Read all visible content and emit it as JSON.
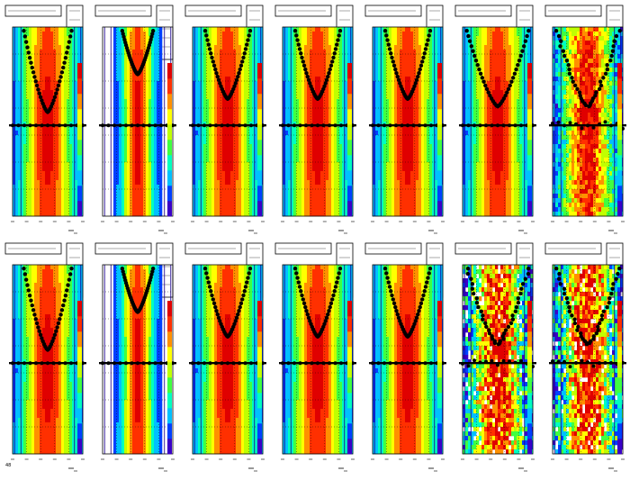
{
  "figure": {
    "footer_text": "",
    "footer_number": "48"
  },
  "chart_data": [
    {
      "type": "heatmap",
      "id": "panel-r1c1",
      "profile": "wide",
      "band": "clean",
      "curve": "v-deep"
    },
    {
      "type": "heatmap",
      "id": "panel-r1c2",
      "profile": "narrow",
      "band": "clean",
      "curve": "v-shallow"
    },
    {
      "type": "heatmap",
      "id": "panel-r1c3",
      "profile": "wide",
      "band": "clean",
      "curve": "v-mid"
    },
    {
      "type": "heatmap",
      "id": "panel-r1c4",
      "profile": "wide",
      "band": "clean",
      "curve": "v-mid"
    },
    {
      "type": "heatmap",
      "id": "panel-r1c5",
      "profile": "wide",
      "band": "clean",
      "curve": "v-mid"
    },
    {
      "type": "heatmap",
      "id": "panel-r1c6",
      "profile": "wide",
      "band": "clean",
      "curve": "v-wide"
    },
    {
      "type": "heatmap",
      "id": "panel-r1c7",
      "profile": "wide",
      "band": "noisy",
      "curve": "v-wide"
    },
    {
      "type": "heatmap",
      "id": "panel-r2c1",
      "profile": "wide",
      "band": "clean",
      "curve": "v-deep"
    },
    {
      "type": "heatmap",
      "id": "panel-r2c2",
      "profile": "narrow",
      "band": "clean",
      "curve": "v-shallow"
    },
    {
      "type": "heatmap",
      "id": "panel-r2c3",
      "profile": "wide",
      "band": "clean",
      "curve": "v-mid"
    },
    {
      "type": "heatmap",
      "id": "panel-r2c4",
      "profile": "wide",
      "band": "clean",
      "curve": "v-mid"
    },
    {
      "type": "heatmap",
      "id": "panel-r2c5",
      "profile": "wide",
      "band": "clean",
      "curve": "v-mid"
    },
    {
      "type": "heatmap",
      "id": "panel-r2c6",
      "profile": "sparse",
      "band": "noisy",
      "curve": "v-wide"
    },
    {
      "type": "heatmap",
      "id": "panel-r2c7",
      "profile": "sparse",
      "band": "noisy",
      "curve": "v-wide"
    }
  ],
  "colors": {
    "palette": [
      "#3a00c8",
      "#0040ff",
      "#00c0ff",
      "#00ffc0",
      "#40ff40",
      "#c0ff00",
      "#ffff00",
      "#ff9000",
      "#ff3000",
      "#e00000"
    ],
    "marker": "#000000",
    "background": "#ffffff"
  }
}
